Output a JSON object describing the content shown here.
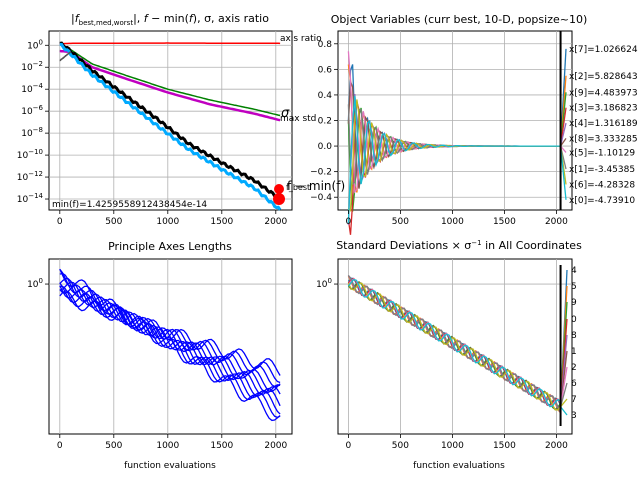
{
  "chart_data": [
    {
      "type": "line",
      "title": "|f_best,med,worst|, f − min(f), σ, axis ratio",
      "title_parts": {
        "a": "|",
        "f": "f",
        "sub": "best,med,worst",
        "b": "|, ",
        "f2": "f",
        "c": " − min(",
        "f3": "f",
        "d": "), σ, axis ratio"
      },
      "log_y": true,
      "xlim": [
        -100,
        2150
      ],
      "ylim": [
        1e-15,
        20
      ],
      "xticks": [
        "0",
        "500",
        "1000",
        "1500",
        "2000"
      ],
      "yticks": [
        "10^0",
        "10^-2",
        "10^-4",
        "10^-6",
        "10^-8",
        "10^-10",
        "10^-12",
        "10^-14"
      ],
      "ytick_base": "10",
      "ytick_exps": [
        "0",
        "−2",
        "−4",
        "−6",
        "−8",
        "−10",
        "−12",
        "−14"
      ],
      "annotations": {
        "axis_ratio": "axis ratio",
        "sigma": "σ",
        "max_std": "max std",
        "min_std": "min std",
        "f_best": "f_best",
        "f_min": "f − min(f)",
        "min_f": "min(f)=1.425955891243845 4e-14"
      },
      "min_f_text": "min(f)=1.4259558912438454e-14",
      "series": [
        {
          "name": "axis ratio",
          "color": "#ff0000",
          "x": [
            0,
            100,
            500,
            1000,
            1500,
            2040
          ],
          "y": [
            1.4,
            1.5,
            1.55,
            1.6,
            1.55,
            1.5
          ]
        },
        {
          "name": "sigma",
          "color": "#008000",
          "x": [
            0,
            100,
            300,
            600,
            1000,
            1400,
            1800,
            2040
          ],
          "y": [
            0.3,
            0.4,
            0.02,
            0.002,
            0.0001,
            1e-05,
            1.5e-06,
            4e-07
          ]
        },
        {
          "name": "max std",
          "color": "#c000c0",
          "x": [
            0,
            100,
            300,
            600,
            1000,
            1400,
            1800,
            2040
          ],
          "y": [
            0.3,
            0.25,
            0.01,
            0.001,
            5e-05,
            4e-06,
            6e-07,
            1.5e-07
          ]
        },
        {
          "name": "f",
          "color": "#000000",
          "x": [
            0,
            50,
            300,
            600,
            900,
            1200,
            1500,
            1800,
            2040
          ],
          "y": [
            1.5,
            0.8,
            0.005,
            3e-05,
            2e-07,
            1e-09,
            2e-11,
            5e-13,
            1e-14
          ]
        },
        {
          "name": "f − min(f)",
          "color": "#00aaff",
          "x": [
            0,
            50,
            300,
            600,
            900,
            1200,
            1500,
            1800,
            2040
          ],
          "y": [
            1.2,
            0.5,
            0.002,
            1e-05,
            5e-08,
            3e-10,
            5e-12,
            1e-13,
            1e-15
          ]
        },
        {
          "name": "min std",
          "color": "#555555",
          "x": [
            0,
            100
          ],
          "y": [
            0.04,
            0.25
          ]
        }
      ]
    },
    {
      "type": "line",
      "title": "Object Variables (curr best, 10-D, popsize~10)",
      "xlim": [
        -100,
        2150
      ],
      "ylim": [
        -0.5,
        0.9
      ],
      "xticks": [
        "0",
        "500",
        "1000",
        "1500",
        "2000"
      ],
      "yticks": [
        "0.8",
        "0.6",
        "0.4",
        "0.2",
        "0.0",
        "−0.2",
        "−0.4"
      ],
      "ytick_vals": [
        0.8,
        0.6,
        0.4,
        0.2,
        0.0,
        -0.2,
        -0.4
      ],
      "labels": [
        "x[7]=1.026624",
        "x[2]=5.828643",
        "x[9]=4.483973",
        "x[3]=3.186823",
        "x[4]=1.316189",
        "x[8]=3.333285",
        "x[5]=-1.10129",
        "x[1]=-3.45385",
        "x[6]=-4.28328",
        "x[0]=-4.73910"
      ]
    },
    {
      "type": "line",
      "title": "Principle Axes Lengths",
      "log_y": true,
      "xlabel": "function evaluations",
      "xlim": [
        -100,
        2150
      ],
      "ytick_label": "10^0",
      "xticks": [
        "0",
        "500",
        "1000",
        "1500",
        "2000"
      ],
      "series_color": "#0000ff",
      "start": [
        0.8,
        0.85,
        0.9,
        0.95,
        1.0,
        1.02,
        1.05,
        1.1,
        1.15,
        1.25
      ],
      "end": [
        0.2,
        0.18,
        0.16,
        0.14,
        0.13,
        0.12,
        0.11,
        0.1,
        0.09,
        0.08
      ]
    },
    {
      "type": "line",
      "title": "Standard Deviations × σ^-1 in All Coordinates",
      "title_parts": {
        "a": "Standard Deviations × σ",
        "sup": "−1",
        "b": " in All Coordinates"
      },
      "log_y": true,
      "xlabel": "function evaluations",
      "xlim": [
        -100,
        2150
      ],
      "ytick_label": "10^0",
      "xticks": [
        "0",
        "500",
        "1000",
        "1500",
        "2000"
      ],
      "labels": [
        "4",
        "5",
        "9",
        "0",
        "8",
        "1",
        "2",
        "6",
        "7",
        "3"
      ]
    }
  ]
}
